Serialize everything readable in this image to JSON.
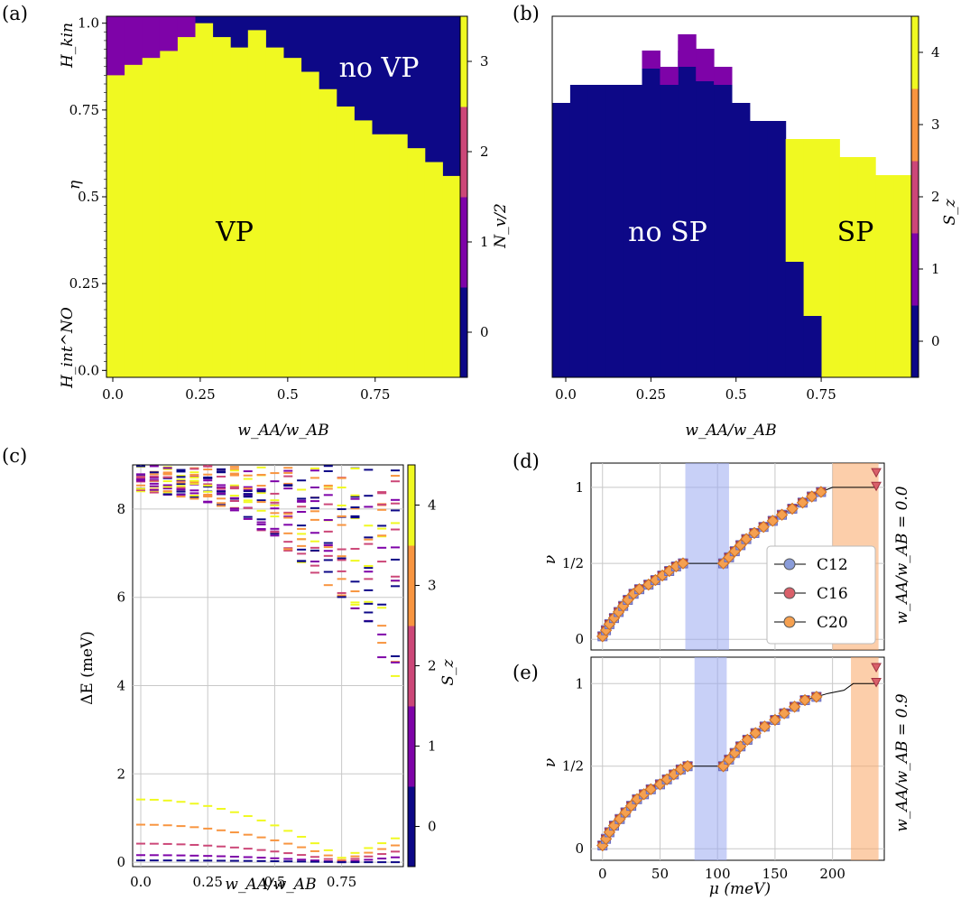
{
  "colors": {
    "s0": "#0d0887",
    "s1": "#7e03a8",
    "s2": "#cc4778",
    "s3": "#f89540",
    "s4": "#f0f921",
    "c12": "#8a9cd9",
    "c16": "#d9606a",
    "c20": "#f5a050",
    "band_blue": "#9aaaf0",
    "band_orange": "#f9a565"
  },
  "panels": {
    "a": {
      "label": "(a)",
      "top_y_label": "H_kin",
      "mid_y_label": "η",
      "bottom_y_label": "H_int^NO",
      "xlabel": "w_AA/w_AB",
      "cbar_label": "N_v/2",
      "region_vp": "VP",
      "region_novp": "no VP"
    },
    "b": {
      "label": "(b)",
      "xlabel": "w_AA/w_AB",
      "cbar_label": "S_z",
      "region_nosp": "no SP",
      "region_sp": "SP"
    },
    "c": {
      "label": "(c)",
      "xlabel": "w_AA/w_AB",
      "ylabel": "ΔE (meV)",
      "cbar_label": "S_z"
    },
    "d": {
      "label": "(d)",
      "ylabel": "ν",
      "side_label": "w_AA/w_AB = 0.0"
    },
    "e": {
      "label": "(e)",
      "ylabel": "ν",
      "side_label": "w_AA/w_AB = 0.9",
      "xlabel": "μ (meV)"
    }
  },
  "chart_data": [
    {
      "panel": "a",
      "type": "heatmap",
      "x": [
        0.0,
        0.05,
        0.1,
        0.15,
        0.2,
        0.25,
        0.3,
        0.35,
        0.4,
        0.45,
        0.5,
        0.55,
        0.6,
        0.65,
        0.7,
        0.75,
        0.8,
        0.85,
        0.9,
        0.95
      ],
      "xticks": [
        "0.0",
        "0.25",
        "0.5",
        "0.75"
      ],
      "yticks": [
        "0.0",
        "0.25",
        "0.5",
        "0.75",
        "1.0"
      ],
      "ylim": [
        0.0,
        1.0
      ],
      "comment_boundary": "y value above which the phase is no VP (blank = none)",
      "vp_boundary": [
        1.0,
        1.0,
        1.0,
        1.0,
        1.0,
        1.0,
        0.96,
        0.93,
        0.98,
        0.93,
        0.9,
        0.86,
        0.81,
        0.76,
        0.72,
        0.68,
        0.68,
        0.64,
        0.6,
        0.56
      ],
      "magenta_region": {
        "x_end": 0.25,
        "y_bottom": [
          0.85,
          0.88,
          0.9,
          0.92,
          0.96
        ]
      },
      "cbar": {
        "ticks": [
          "0",
          "1",
          "2",
          "3"
        ],
        "range": [
          -0.5,
          3.5
        ]
      }
    },
    {
      "panel": "b",
      "type": "heatmap",
      "x": [
        0.0,
        0.05,
        0.1,
        0.15,
        0.2,
        0.25,
        0.3,
        0.35,
        0.4,
        0.45,
        0.5,
        0.55,
        0.6,
        0.65,
        0.7,
        0.75,
        0.8,
        0.85,
        0.9,
        0.95
      ],
      "xticks": [
        "0.0",
        "0.25",
        "0.5",
        "0.75"
      ],
      "cbar": {
        "ticks": [
          "0",
          "1",
          "2",
          "3",
          "4"
        ],
        "range": [
          -0.5,
          4.5
        ]
      }
    },
    {
      "panel": "c",
      "type": "scatter",
      "xticks": [
        "0.0",
        "0.25",
        "0.5",
        "0.75"
      ],
      "yticks": [
        "0",
        "2",
        "4",
        "6",
        "8"
      ],
      "ylim": [
        0,
        9
      ],
      "low_branches": [
        {
          "sz": 4,
          "e0": 1.42,
          "e_end": 0.1
        },
        {
          "sz": 3,
          "e0": 0.85,
          "e_end": 0.05
        },
        {
          "sz": 2,
          "e0": 0.42,
          "e_end": 0.02
        },
        {
          "sz": 1,
          "e0": 0.16,
          "e_end": 0.0
        },
        {
          "sz": 0,
          "e0": 0.04,
          "e_end": 0.0
        }
      ],
      "cbar": {
        "ticks": [
          "0",
          "1",
          "2",
          "3",
          "4"
        ],
        "range": [
          -0.5,
          4.5
        ]
      }
    },
    {
      "panel": "d",
      "type": "line",
      "series": [
        {
          "name": "C12",
          "marker": "circle"
        },
        {
          "name": "C16",
          "marker": "circle"
        },
        {
          "name": "C20",
          "marker": "circle"
        }
      ],
      "xlim": [
        -10,
        245
      ],
      "ytick_labels": [
        "0",
        "1/2",
        "1"
      ],
      "bands": [
        {
          "color": "blue",
          "x": [
            72,
            110
          ]
        },
        {
          "color": "orange",
          "x": [
            200,
            240
          ]
        }
      ],
      "points": [
        [
          0,
          0.02
        ],
        [
          3,
          0.06
        ],
        [
          6,
          0.1
        ],
        [
          10,
          0.14
        ],
        [
          14,
          0.18
        ],
        [
          18,
          0.22
        ],
        [
          22,
          0.26
        ],
        [
          27,
          0.3
        ],
        [
          32,
          0.33
        ],
        [
          40,
          0.36
        ],
        [
          46,
          0.39
        ],
        [
          52,
          0.42
        ],
        [
          58,
          0.45
        ],
        [
          64,
          0.48
        ],
        [
          70,
          0.5
        ],
        [
          105,
          0.5
        ],
        [
          110,
          0.54
        ],
        [
          115,
          0.58
        ],
        [
          120,
          0.62
        ],
        [
          125,
          0.66
        ],
        [
          132,
          0.7
        ],
        [
          140,
          0.74
        ],
        [
          148,
          0.78
        ],
        [
          156,
          0.82
        ],
        [
          165,
          0.86
        ],
        [
          174,
          0.9
        ],
        [
          182,
          0.94
        ],
        [
          190,
          0.97
        ],
        [
          200,
          1.0
        ],
        [
          240,
          1.0
        ]
      ],
      "extra": [
        [
          238,
          1.1
        ]
      ]
    },
    {
      "panel": "e",
      "type": "line",
      "xlim": [
        -10,
        245
      ],
      "xticks": [
        "0",
        "50",
        "100",
        "150",
        "200"
      ],
      "ytick_labels": [
        "0",
        "1/2",
        "1"
      ],
      "bands": [
        {
          "color": "blue",
          "x": [
            80,
            108
          ]
        },
        {
          "color": "orange",
          "x": [
            216,
            240
          ]
        }
      ],
      "points": [
        [
          0,
          0.02
        ],
        [
          3,
          0.06
        ],
        [
          6,
          0.1
        ],
        [
          10,
          0.14
        ],
        [
          15,
          0.18
        ],
        [
          20,
          0.22
        ],
        [
          25,
          0.26
        ],
        [
          30,
          0.3
        ],
        [
          36,
          0.33
        ],
        [
          42,
          0.36
        ],
        [
          50,
          0.39
        ],
        [
          56,
          0.42
        ],
        [
          62,
          0.45
        ],
        [
          68,
          0.48
        ],
        [
          74,
          0.5
        ],
        [
          105,
          0.5
        ],
        [
          110,
          0.54
        ],
        [
          115,
          0.58
        ],
        [
          120,
          0.62
        ],
        [
          126,
          0.66
        ],
        [
          133,
          0.7
        ],
        [
          141,
          0.74
        ],
        [
          150,
          0.78
        ],
        [
          158,
          0.82
        ],
        [
          167,
          0.86
        ],
        [
          176,
          0.9
        ],
        [
          186,
          0.92
        ],
        [
          196,
          0.94
        ],
        [
          210,
          0.96
        ],
        [
          218,
          1.0
        ],
        [
          240,
          1.0
        ]
      ],
      "extra": [
        [
          238,
          1.1
        ]
      ]
    }
  ]
}
